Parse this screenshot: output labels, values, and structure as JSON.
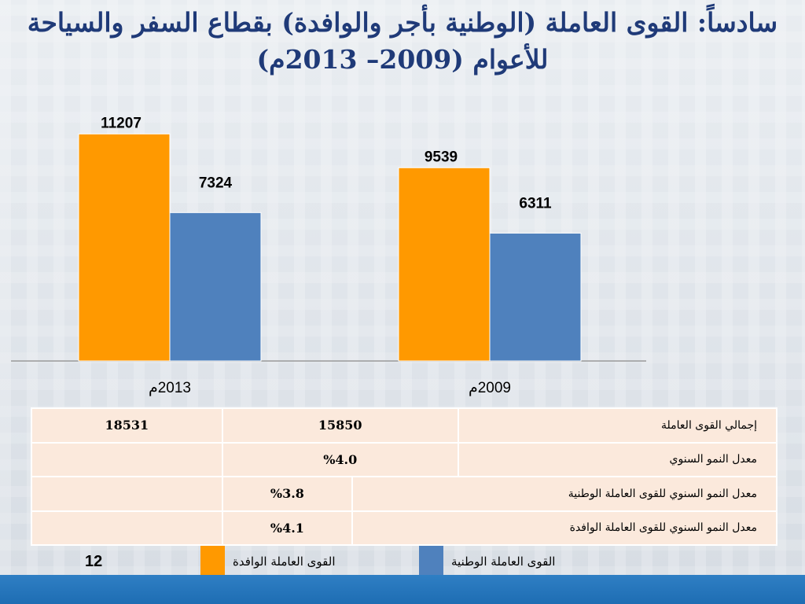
{
  "title": {
    "line1": "سادساً: القوى العاملة (الوطنية بأجر والوافدة) بقطاع السفر والسياحة",
    "line2": "للأعوام (2009– 2013م)"
  },
  "chart_data": {
    "type": "bar",
    "categories": [
      "2013م",
      "2009م"
    ],
    "series": [
      {
        "name": "القوى العاملة الوافدة",
        "color": "#ff9900",
        "values": [
          11207,
          9539
        ]
      },
      {
        "name": "القوى العاملة الوطنية",
        "color": "#4f81bd",
        "values": [
          7324,
          6311
        ]
      }
    ],
    "ylim": [
      0,
      12500
    ],
    "grid": false,
    "legend_position": "bottom"
  },
  "table": {
    "rows": [
      {
        "label": "إجمالي القوى العاملة",
        "v2009": "15850",
        "v2013": "18531"
      },
      {
        "label": "معدل النمو السنوي",
        "v": "%4.0"
      },
      {
        "label": "معدل النمو السنوي للقوى العاملة الوطنية",
        "v": "%3.8"
      },
      {
        "label": "معدل النمو السنوي للقوى العاملة الوافدة",
        "v": "%4.1"
      }
    ]
  },
  "legend": {
    "foreign": "القوى العاملة الوافدة",
    "national": "القوى العاملة الوطنية"
  },
  "page_number": "12"
}
